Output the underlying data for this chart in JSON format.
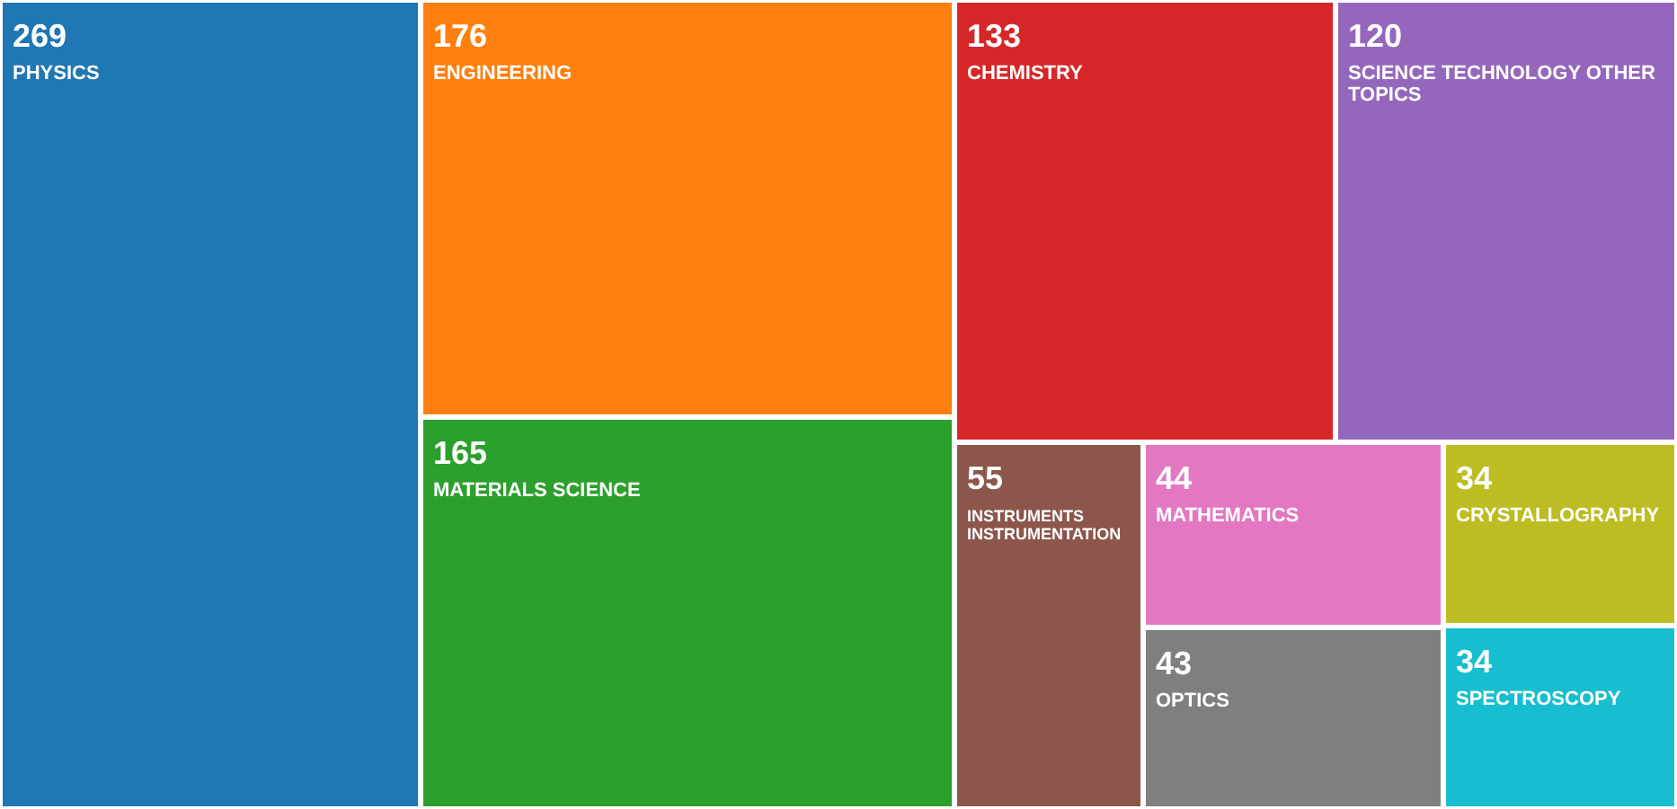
{
  "chart_data": {
    "type": "other",
    "categories": [
      "PHYSICS",
      "ENGINEERING",
      "MATERIALS SCIENCE",
      "CHEMISTRY",
      "SCIENCE TECHNOLOGY OTHER TOPICS",
      "INSTRUMENTS INSTRUMENTATION",
      "MATHEMATICS",
      "OPTICS",
      "CRYSTALLOGRAPHY",
      "SPECTROSCOPY"
    ],
    "values": [
      269,
      176,
      165,
      133,
      120,
      55,
      44,
      43,
      34,
      34
    ],
    "colors": [
      "#1f77b4",
      "#ff7f0e",
      "#2ca02c",
      "#d62728",
      "#9467bd",
      "#8c564b",
      "#e377c2",
      "#7f7f7f",
      "#bcbd22",
      "#17becf"
    ],
    "data_labels": true
  }
}
